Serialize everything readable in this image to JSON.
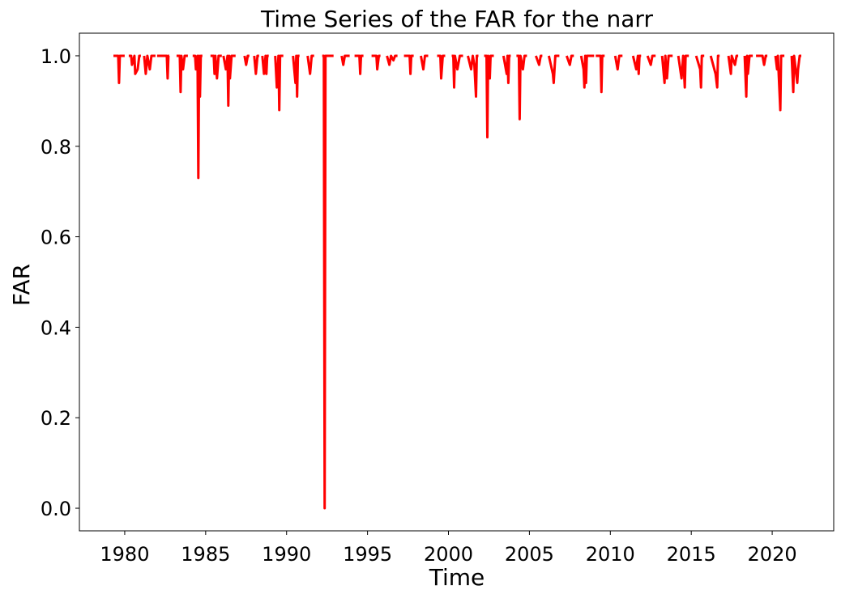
{
  "chart_data": {
    "type": "line",
    "title": "Time Series of the FAR for the narr",
    "xlabel": "Time",
    "ylabel": "FAR",
    "xlim": [
      1977.2,
      2023.8
    ],
    "ylim": [
      -0.05,
      1.05
    ],
    "x_ticks": [
      1980,
      1985,
      1990,
      1995,
      2000,
      2005,
      2010,
      2015,
      2020
    ],
    "y_ticks": [
      0.0,
      0.2,
      0.4,
      0.6,
      0.8,
      1.0
    ],
    "y_tick_labels": [
      "0.0",
      "0.2",
      "0.4",
      "0.6",
      "0.8",
      "1.0"
    ],
    "grid": false,
    "line_color": "#ff0000",
    "series": [
      {
        "segments": [
          [
            [
              1979.3,
              1.0
            ],
            [
              1979.6,
              1.0
            ],
            [
              1979.65,
              0.94
            ],
            [
              1979.7,
              1.0
            ],
            [
              1980.0,
              1.0
            ]
          ],
          [
            [
              1980.25,
              1.0
            ],
            [
              1980.4,
              1.0
            ],
            [
              1980.45,
              0.98
            ],
            [
              1980.6,
              1.0
            ],
            [
              1980.65,
              0.96
            ],
            [
              1980.8,
              0.97
            ],
            [
              1980.9,
              1.0
            ],
            [
              1981.0,
              1.0
            ]
          ],
          [
            [
              1981.2,
              1.0
            ],
            [
              1981.3,
              0.96
            ],
            [
              1981.4,
              1.0
            ],
            [
              1981.55,
              0.97
            ],
            [
              1981.65,
              1.0
            ],
            [
              1981.9,
              1.0
            ]
          ],
          [
            [
              1982.0,
              1.0
            ],
            [
              1982.6,
              1.0
            ],
            [
              1982.65,
              0.95
            ],
            [
              1982.7,
              1.0
            ],
            [
              1982.75,
              1.0
            ]
          ],
          [
            [
              1983.2,
              1.0
            ],
            [
              1983.4,
              1.0
            ],
            [
              1983.45,
              0.92
            ],
            [
              1983.5,
              1.0
            ],
            [
              1983.6,
              0.97
            ],
            [
              1983.7,
              1.0
            ],
            [
              1983.9,
              1.0
            ]
          ],
          [
            [
              1984.2,
              1.0
            ],
            [
              1984.35,
              1.0
            ],
            [
              1984.4,
              0.97
            ],
            [
              1984.5,
              1.0
            ],
            [
              1984.55,
              0.73
            ],
            [
              1984.6,
              1.0
            ],
            [
              1984.65,
              0.91
            ],
            [
              1984.7,
              1.0
            ],
            [
              1984.8,
              1.0
            ]
          ],
          [
            [
              1985.3,
              1.0
            ],
            [
              1985.5,
              1.0
            ],
            [
              1985.55,
              0.96
            ],
            [
              1985.6,
              1.0
            ],
            [
              1985.7,
              0.95
            ],
            [
              1985.8,
              1.0
            ],
            [
              1986.0,
              1.0
            ]
          ],
          [
            [
              1986.1,
              1.0
            ],
            [
              1986.25,
              0.97
            ],
            [
              1986.35,
              1.0
            ],
            [
              1986.4,
              0.89
            ],
            [
              1986.45,
              1.0
            ],
            [
              1986.5,
              0.95
            ],
            [
              1986.6,
              1.0
            ],
            [
              1986.85,
              1.0
            ]
          ],
          [
            [
              1987.4,
              1.0
            ],
            [
              1987.5,
              0.98
            ],
            [
              1987.6,
              1.0
            ],
            [
              1987.7,
              1.0
            ]
          ],
          [
            [
              1988.0,
              1.0
            ],
            [
              1988.1,
              0.96
            ],
            [
              1988.2,
              1.0
            ],
            [
              1988.3,
              1.0
            ]
          ],
          [
            [
              1988.5,
              1.0
            ],
            [
              1988.6,
              0.96
            ],
            [
              1988.7,
              1.0
            ],
            [
              1988.75,
              0.96
            ],
            [
              1988.8,
              1.0
            ],
            [
              1988.9,
              1.0
            ]
          ],
          [
            [
              1989.3,
              1.0
            ],
            [
              1989.4,
              0.93
            ],
            [
              1989.5,
              1.0
            ],
            [
              1989.55,
              0.88
            ],
            [
              1989.6,
              1.0
            ],
            [
              1989.8,
              1.0
            ]
          ],
          [
            [
              1990.4,
              1.0
            ],
            [
              1990.55,
              0.94
            ],
            [
              1990.6,
              1.0
            ],
            [
              1990.65,
              0.91
            ],
            [
              1990.7,
              1.0
            ],
            [
              1990.8,
              1.0
            ]
          ],
          [
            [
              1991.3,
              1.0
            ],
            [
              1991.45,
              0.96
            ],
            [
              1991.55,
              1.0
            ],
            [
              1991.7,
              1.0
            ]
          ],
          [
            [
              1992.2,
              1.0
            ],
            [
              1992.3,
              1.0
            ],
            [
              1992.35,
              0.0
            ],
            [
              1992.4,
              1.0
            ],
            [
              1992.9,
              1.0
            ]
          ],
          [
            [
              1993.4,
              1.0
            ],
            [
              1993.5,
              0.98
            ],
            [
              1993.6,
              1.0
            ],
            [
              1993.9,
              1.0
            ]
          ],
          [
            [
              1994.2,
              1.0
            ],
            [
              1994.5,
              1.0
            ],
            [
              1994.55,
              0.96
            ],
            [
              1994.6,
              1.0
            ],
            [
              1994.75,
              1.0
            ]
          ],
          [
            [
              1995.25,
              1.0
            ],
            [
              1995.55,
              1.0
            ],
            [
              1995.6,
              0.97
            ],
            [
              1995.7,
              1.0
            ],
            [
              1995.8,
              1.0
            ]
          ],
          [
            [
              1996.2,
              1.0
            ],
            [
              1996.35,
              0.98
            ],
            [
              1996.45,
              1.0
            ],
            [
              1996.6,
              0.99
            ],
            [
              1996.7,
              1.0
            ],
            [
              1996.85,
              1.0
            ]
          ],
          [
            [
              1997.25,
              1.0
            ],
            [
              1997.6,
              1.0
            ],
            [
              1997.65,
              0.96
            ],
            [
              1997.7,
              1.0
            ],
            [
              1997.85,
              1.0
            ]
          ],
          [
            [
              1998.3,
              1.0
            ],
            [
              1998.45,
              0.97
            ],
            [
              1998.55,
              1.0
            ],
            [
              1998.75,
              1.0
            ]
          ],
          [
            [
              1999.3,
              1.0
            ],
            [
              1999.5,
              1.0
            ],
            [
              1999.55,
              0.95
            ],
            [
              1999.65,
              1.0
            ],
            [
              1999.8,
              1.0
            ]
          ],
          [
            [
              2000.2,
              1.0
            ],
            [
              2000.3,
              1.0
            ],
            [
              2000.35,
              0.93
            ],
            [
              2000.4,
              1.0
            ],
            [
              2000.55,
              0.97
            ],
            [
              2000.7,
              1.0
            ],
            [
              2000.9,
              1.0
            ]
          ],
          [
            [
              2001.2,
              1.0
            ],
            [
              2001.4,
              0.97
            ],
            [
              2001.5,
              1.0
            ],
            [
              2001.6,
              0.98
            ],
            [
              2001.7,
              0.91
            ],
            [
              2001.75,
              1.0
            ],
            [
              2001.85,
              1.0
            ]
          ],
          [
            [
              2002.2,
              1.0
            ],
            [
              2002.35,
              1.0
            ],
            [
              2002.4,
              0.82
            ],
            [
              2002.45,
              1.0
            ],
            [
              2002.55,
              0.95
            ],
            [
              2002.6,
              1.0
            ],
            [
              2002.8,
              1.0
            ]
          ],
          [
            [
              2003.4,
              1.0
            ],
            [
              2003.6,
              0.96
            ],
            [
              2003.65,
              1.0
            ],
            [
              2003.7,
              0.94
            ],
            [
              2003.75,
              1.0
            ],
            [
              2003.85,
              1.0
            ]
          ],
          [
            [
              2004.2,
              1.0
            ],
            [
              2004.35,
              1.0
            ],
            [
              2004.4,
              0.86
            ],
            [
              2004.45,
              1.0
            ],
            [
              2004.6,
              0.97
            ],
            [
              2004.7,
              1.0
            ],
            [
              2004.85,
              1.0
            ]
          ],
          [
            [
              2005.4,
              1.0
            ],
            [
              2005.6,
              0.98
            ],
            [
              2005.7,
              1.0
            ],
            [
              2005.8,
              1.0
            ]
          ],
          [
            [
              2006.2,
              1.0
            ],
            [
              2006.45,
              0.96
            ],
            [
              2006.5,
              0.94
            ],
            [
              2006.6,
              1.0
            ],
            [
              2006.85,
              1.0
            ]
          ],
          [
            [
              2007.3,
              1.0
            ],
            [
              2007.5,
              0.98
            ],
            [
              2007.6,
              1.0
            ],
            [
              2007.75,
              1.0
            ]
          ],
          [
            [
              2008.2,
              1.0
            ],
            [
              2008.35,
              0.97
            ],
            [
              2008.4,
              0.93
            ],
            [
              2008.45,
              1.0
            ],
            [
              2008.5,
              0.94
            ],
            [
              2008.55,
              1.0
            ],
            [
              2009.0,
              1.0
            ]
          ],
          [
            [
              2009.1,
              1.0
            ],
            [
              2009.4,
              1.0
            ],
            [
              2009.45,
              0.92
            ],
            [
              2009.5,
              1.0
            ],
            [
              2009.65,
              1.0
            ]
          ],
          [
            [
              2010.3,
              1.0
            ],
            [
              2010.45,
              0.97
            ],
            [
              2010.55,
              1.0
            ],
            [
              2010.75,
              1.0
            ]
          ],
          [
            [
              2011.4,
              1.0
            ],
            [
              2011.6,
              0.97
            ],
            [
              2011.7,
              1.0
            ],
            [
              2011.75,
              0.96
            ],
            [
              2011.8,
              1.0
            ],
            [
              2011.9,
              1.0
            ]
          ],
          [
            [
              2012.3,
              1.0
            ],
            [
              2012.5,
              0.98
            ],
            [
              2012.6,
              1.0
            ],
            [
              2012.8,
              1.0
            ]
          ],
          [
            [
              2013.2,
              1.0
            ],
            [
              2013.3,
              0.96
            ],
            [
              2013.35,
              0.94
            ],
            [
              2013.4,
              1.0
            ],
            [
              2013.5,
              0.95
            ],
            [
              2013.6,
              1.0
            ],
            [
              2013.85,
              1.0
            ]
          ],
          [
            [
              2014.2,
              1.0
            ],
            [
              2014.4,
              0.95
            ],
            [
              2014.5,
              1.0
            ],
            [
              2014.6,
              0.93
            ],
            [
              2014.65,
              1.0
            ],
            [
              2014.85,
              1.0
            ]
          ],
          [
            [
              2015.3,
              1.0
            ],
            [
              2015.55,
              0.97
            ],
            [
              2015.6,
              0.93
            ],
            [
              2015.65,
              1.0
            ],
            [
              2015.8,
              1.0
            ]
          ],
          [
            [
              2016.2,
              1.0
            ],
            [
              2016.5,
              0.96
            ],
            [
              2016.6,
              0.93
            ],
            [
              2016.65,
              1.0
            ],
            [
              2016.75,
              1.0
            ]
          ],
          [
            [
              2017.3,
              1.0
            ],
            [
              2017.45,
              0.96
            ],
            [
              2017.5,
              1.0
            ],
            [
              2017.7,
              0.98
            ],
            [
              2017.8,
              1.0
            ],
            [
              2017.9,
              1.0
            ]
          ],
          [
            [
              2018.3,
              1.0
            ],
            [
              2018.4,
              0.91
            ],
            [
              2018.45,
              1.0
            ],
            [
              2018.5,
              0.96
            ],
            [
              2018.6,
              1.0
            ],
            [
              2018.8,
              1.0
            ]
          ],
          [
            [
              2019.0,
              1.0
            ],
            [
              2019.4,
              1.0
            ],
            [
              2019.5,
              0.98
            ],
            [
              2019.6,
              1.0
            ],
            [
              2019.7,
              1.0
            ]
          ],
          [
            [
              2020.2,
              1.0
            ],
            [
              2020.3,
              0.97
            ],
            [
              2020.35,
              1.0
            ],
            [
              2020.5,
              0.88
            ],
            [
              2020.55,
              1.0
            ],
            [
              2020.75,
              1.0
            ]
          ],
          [
            [
              2021.2,
              1.0
            ],
            [
              2021.3,
              0.92
            ],
            [
              2021.35,
              1.0
            ],
            [
              2021.55,
              0.94
            ],
            [
              2021.6,
              0.97
            ],
            [
              2021.7,
              1.0
            ],
            [
              2021.8,
              1.0
            ]
          ]
        ]
      }
    ]
  }
}
